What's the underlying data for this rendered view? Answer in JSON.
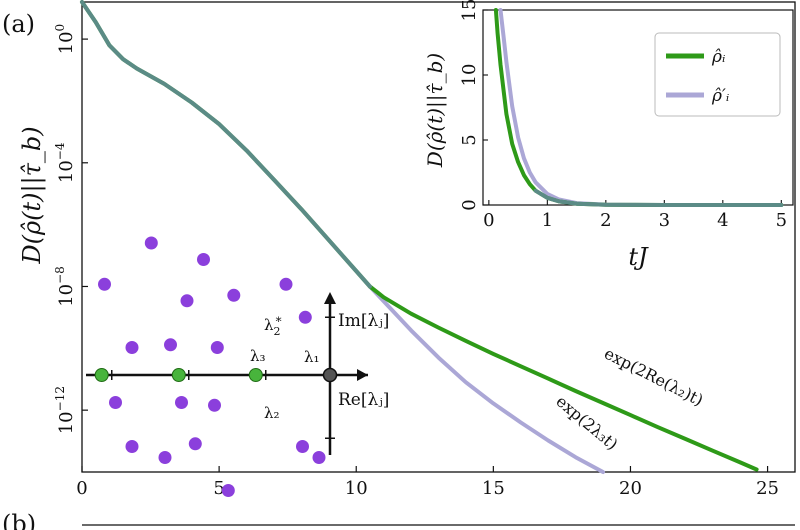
{
  "panel_label_a": "(a)",
  "panel_label_b": "(b)",
  "colors": {
    "green": "#2e9a18",
    "lavender": "#aba7d6",
    "teal": "#5b8b86",
    "purple": "#8b3fdc",
    "dot_green": "#48b43c",
    "axis": "#111111"
  },
  "chart_data": [
    {
      "id": "main",
      "type": "line",
      "title": "",
      "xlabel": "",
      "ylabel": "D(ρ̂(t)||τ̂_b)",
      "yscale": "log",
      "xlim": [
        0,
        26
      ],
      "ylim_log10": [
        -14,
        1.2
      ],
      "xticks": [
        0,
        5,
        10,
        15,
        20,
        25
      ],
      "xtick_labels": [
        "0",
        "5",
        "10",
        "15",
        "20",
        "25"
      ],
      "yticks_log10": [
        0,
        -4,
        -8,
        -12
      ],
      "ytick_bases": [
        "10",
        "10",
        "10",
        "10"
      ],
      "ytick_exponents": [
        "0",
        "−4",
        "−8",
        "−12"
      ],
      "series": [
        {
          "name": "exp(2Re(λ2)t)",
          "color_key": "green",
          "x": [
            0,
            0.5,
            1,
            1.5,
            2,
            3,
            4,
            5,
            6,
            7,
            8,
            9,
            10,
            10.5,
            11,
            12,
            13,
            14,
            15,
            16,
            17,
            18,
            19,
            20,
            21,
            22,
            23,
            24,
            24.6
          ],
          "log10_y": [
            1.2,
            0.55,
            -0.2,
            -0.65,
            -0.95,
            -1.45,
            -2.05,
            -2.75,
            -3.6,
            -4.55,
            -5.5,
            -6.5,
            -7.5,
            -8.0,
            -8.35,
            -8.88,
            -9.33,
            -9.76,
            -10.18,
            -10.58,
            -10.98,
            -11.38,
            -11.77,
            -12.16,
            -12.55,
            -12.93,
            -13.31,
            -13.69,
            -13.92
          ]
        },
        {
          "name": "exp(2λ3t)",
          "color_key": "lavender",
          "x": [
            10.5,
            11,
            12,
            13,
            14,
            15,
            16,
            17,
            18,
            19
          ],
          "log10_y": [
            -8.0,
            -8.48,
            -9.42,
            -10.3,
            -11.1,
            -11.78,
            -12.4,
            -12.98,
            -13.52,
            -14.0
          ]
        }
      ],
      "annotations": [
        {
          "id": "green",
          "text": "exp(2Re(λ₂)t)",
          "rotate_deg": 27
        },
        {
          "id": "lavender",
          "text": "exp(2λ₃t)",
          "rotate_deg": 40
        }
      ]
    },
    {
      "id": "inset",
      "type": "line",
      "xlabel": "tJ",
      "ylabel": "D(ρ̂(t)||τ̂_b)",
      "xlim": [
        -0.1,
        5.2
      ],
      "ylim": [
        0,
        15
      ],
      "xticks": [
        0,
        1,
        2,
        3,
        4,
        5
      ],
      "xtick_labels": [
        "0",
        "1",
        "2",
        "3",
        "4",
        "5"
      ],
      "yticks": [
        0,
        5,
        10,
        15
      ],
      "ytick_labels": [
        "0",
        "5",
        "10",
        "15"
      ],
      "legend_position": "top-right",
      "series": [
        {
          "name": "ρ̂ᵢ",
          "color_key": "green",
          "x": [
            0.12,
            0.15,
            0.2,
            0.3,
            0.4,
            0.5,
            0.6,
            0.7,
            0.8,
            1.0,
            1.2,
            1.5,
            2.0,
            2.5,
            3,
            4,
            5
          ],
          "y": [
            15,
            13.2,
            10.8,
            7.0,
            4.7,
            3.3,
            2.3,
            1.6,
            1.1,
            0.55,
            0.28,
            0.1,
            0.02,
            0.005,
            0,
            0,
            0
          ]
        },
        {
          "name": "ρ̂′ᵢ",
          "color_key": "lavender",
          "x": [
            0.2,
            0.25,
            0.3,
            0.4,
            0.5,
            0.6,
            0.7,
            0.8,
            1.0,
            1.2,
            1.5,
            2.0,
            2.5,
            3,
            4,
            5
          ],
          "y": [
            15,
            13.0,
            11.0,
            7.6,
            5.2,
            3.6,
            2.5,
            1.75,
            0.85,
            0.42,
            0.15,
            0.03,
            0.006,
            0,
            0,
            0
          ]
        }
      ]
    },
    {
      "id": "spectrum",
      "type": "scatter",
      "xlabel": "Re[λⱼ]",
      "ylabel": "Im[λⱼ]",
      "point_labels": {
        "l1": "λ₁",
        "l2": "λ₂",
        "l2_base": "λ",
        "l2_sub": "2",
        "l2_sup": "∗",
        "l3": "λ₃"
      },
      "purple_points": [
        [
          -8.2,
          3.3
        ],
        [
          -7.2,
          1.0
        ],
        [
          -7.8,
          -1.0
        ],
        [
          -7.2,
          -2.6
        ],
        [
          -6.5,
          4.8
        ],
        [
          -5.8,
          1.1
        ],
        [
          -5.4,
          -1.0
        ],
        [
          -6.0,
          -3.0
        ],
        [
          -5.2,
          2.7
        ],
        [
          -4.9,
          -2.5
        ],
        [
          -4.6,
          4.2
        ],
        [
          -4.1,
          1.0
        ],
        [
          -4.2,
          -1.1
        ],
        [
          -3.7,
          -4.2
        ],
        [
          -3.5,
          2.9
        ],
        [
          -1.6,
          3.3
        ],
        [
          -0.9,
          2.1
        ],
        [
          -1.0,
          -2.6
        ],
        [
          -0.4,
          -3.0
        ]
      ],
      "green_points": [
        [
          -8.3,
          0
        ],
        [
          -5.5,
          0
        ],
        [
          -2.7,
          0
        ]
      ],
      "origin_point": [
        0,
        0
      ]
    }
  ]
}
